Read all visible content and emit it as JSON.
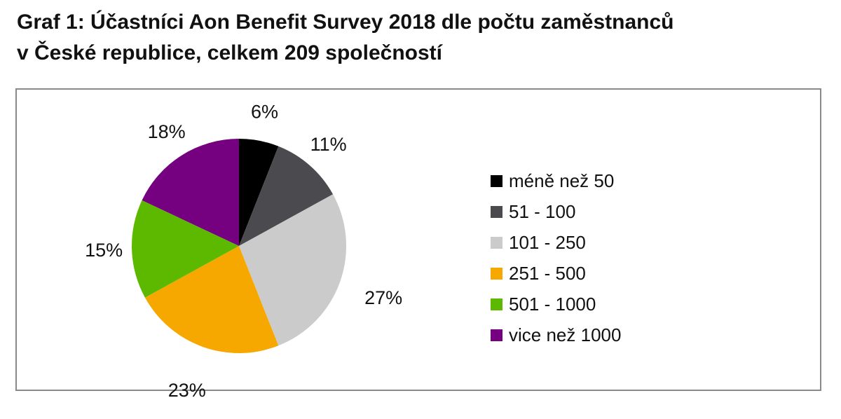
{
  "title": {
    "line1": "Graf 1: Účastníci Aon Benefit Survey 2018 dle počtu zaměstnanců",
    "line2": "v České republice, celkem 209 společností"
  },
  "chart_data": {
    "type": "pie",
    "title": "Graf 1: Účastníci Aon Benefit Survey 2018 dle počtu zaměstnanců v České republice, celkem 209 společností",
    "legend_position": "right",
    "categories": [
      "méně než 50",
      "51 - 100",
      "101 - 250",
      "251 - 500",
      "501 - 1000",
      "vice než 1000"
    ],
    "values": [
      6,
      11,
      27,
      23,
      15,
      18
    ],
    "labels": [
      "6%",
      "11%",
      "27%",
      "23%",
      "15%",
      "18%"
    ],
    "colors": [
      "#000000",
      "#4b4b4f",
      "#cbcbcb",
      "#f6a800",
      "#5cb900",
      "#750080"
    ],
    "unit": "%"
  }
}
